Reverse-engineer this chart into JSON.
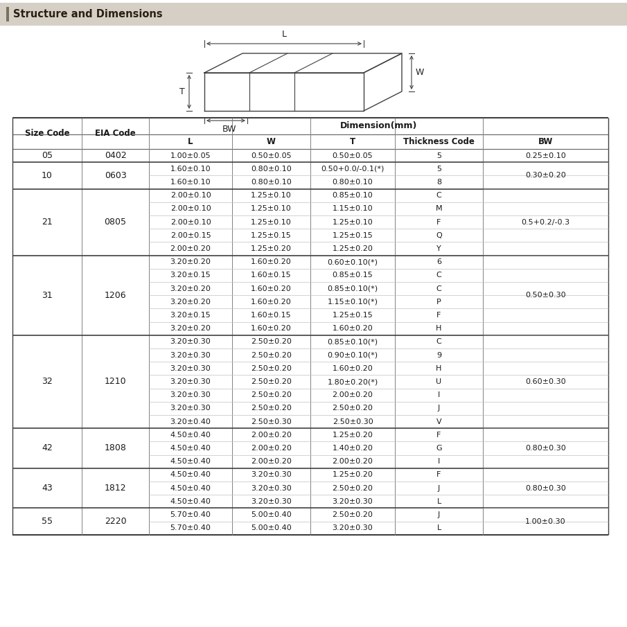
{
  "title": "Structure and Dimensions",
  "col_header": [
    "Size Code",
    "EIA Code",
    "L",
    "W",
    "T",
    "Thickness Code",
    "BW"
  ],
  "dim_header": "Dimension(mm)",
  "rows": [
    [
      "05",
      "0402",
      "1.00±0.05",
      "0.50±0.05",
      "0.50±0.05",
      "5",
      "0.25±0.10"
    ],
    [
      "10",
      "0603",
      "1.60±0.10",
      "0.80±0.10",
      "0.50+0.0/-0.1(*)",
      "5",
      "0.30±0.20"
    ],
    [
      "10",
      "0603",
      "1.60±0.10",
      "0.80±0.10",
      "0.80±0.10",
      "8",
      "0.30±0.20"
    ],
    [
      "21",
      "0805",
      "2.00±0.10",
      "1.25±0.10",
      "0.85±0.10",
      "C",
      "0.5+0.2/-0.3"
    ],
    [
      "21",
      "0805",
      "2.00±0.10",
      "1.25±0.10",
      "1.15±0.10",
      "M",
      "0.5+0.2/-0.3"
    ],
    [
      "21",
      "0805",
      "2.00±0.10",
      "1.25±0.10",
      "1.25±0.10",
      "F",
      "0.5+0.2/-0.3"
    ],
    [
      "21",
      "0805",
      "2.00±0.15",
      "1.25±0.15",
      "1.25±0.15",
      "Q",
      "0.5+0.2/-0.3"
    ],
    [
      "21",
      "0805",
      "2.00±0.20",
      "1.25±0.20",
      "1.25±0.20",
      "Y",
      "0.5+0.2/-0.3"
    ],
    [
      "31",
      "1206",
      "3.20±0.20",
      "1.60±0.20",
      "0.60±0.10(*)",
      "6",
      "0.50±0.30"
    ],
    [
      "31",
      "1206",
      "3.20±0.15",
      "1.60±0.15",
      "0.85±0.15",
      "C",
      "0.50±0.30"
    ],
    [
      "31",
      "1206",
      "3.20±0.20",
      "1.60±0.20",
      "0.85±0.10(*)",
      "C",
      "0.50±0.30"
    ],
    [
      "31",
      "1206",
      "3.20±0.20",
      "1.60±0.20",
      "1.15±0.10(*)",
      "P",
      "0.50±0.30"
    ],
    [
      "31",
      "1206",
      "3.20±0.15",
      "1.60±0.15",
      "1.25±0.15",
      "F",
      "0.50±0.30"
    ],
    [
      "31",
      "1206",
      "3.20±0.20",
      "1.60±0.20",
      "1.60±0.20",
      "H",
      "0.50±0.30"
    ],
    [
      "32",
      "1210",
      "3.20±0.30",
      "2.50±0.20",
      "0.85±0.10(*)",
      "C",
      "0.60±0.30"
    ],
    [
      "32",
      "1210",
      "3.20±0.30",
      "2.50±0.20",
      "0.90±0.10(*)",
      "9",
      "0.60±0.30"
    ],
    [
      "32",
      "1210",
      "3.20±0.30",
      "2.50±0.20",
      "1.60±0.20",
      "H",
      "0.60±0.30"
    ],
    [
      "32",
      "1210",
      "3.20±0.30",
      "2.50±0.20",
      "1.80±0.20(*)",
      "U",
      "0.60±0.30"
    ],
    [
      "32",
      "1210",
      "3.20±0.30",
      "2.50±0.20",
      "2.00±0.20",
      "I",
      "0.60±0.30"
    ],
    [
      "32",
      "1210",
      "3.20±0.30",
      "2.50±0.20",
      "2.50±0.20",
      "J",
      "0.60±0.30"
    ],
    [
      "32",
      "1210",
      "3.20±0.40",
      "2.50±0.30",
      "2.50±0.30",
      "V",
      "0.60±0.30"
    ],
    [
      "42",
      "1808",
      "4.50±0.40",
      "2.00±0.20",
      "1.25±0.20",
      "F",
      "0.80±0.30"
    ],
    [
      "42",
      "1808",
      "4.50±0.40",
      "2.00±0.20",
      "1.40±0.20",
      "G",
      "0.80±0.30"
    ],
    [
      "42",
      "1808",
      "4.50±0.40",
      "2.00±0.20",
      "2.00±0.20",
      "I",
      "0.80±0.30"
    ],
    [
      "43",
      "1812",
      "4.50±0.40",
      "3.20±0.30",
      "1.25±0.20",
      "F",
      "0.80±0.30"
    ],
    [
      "43",
      "1812",
      "4.50±0.40",
      "3.20±0.30",
      "2.50±0.20",
      "J",
      "0.80±0.30"
    ],
    [
      "43",
      "1812",
      "4.50±0.40",
      "3.20±0.30",
      "3.20±0.30",
      "L",
      "0.80±0.30"
    ],
    [
      "55",
      "2220",
      "5.70±0.40",
      "5.00±0.40",
      "2.50±0.20",
      "J",
      "1.00±0.30"
    ],
    [
      "55",
      "2220",
      "5.70±0.40",
      "5.00±0.40",
      "3.20±0.30",
      "L",
      "1.00±0.30"
    ]
  ],
  "group_spans": [
    [
      "05",
      0,
      0
    ],
    [
      "10",
      1,
      2
    ],
    [
      "21",
      3,
      7
    ],
    [
      "31",
      8,
      13
    ],
    [
      "32",
      14,
      20
    ],
    [
      "42",
      21,
      23
    ],
    [
      "43",
      24,
      26
    ],
    [
      "55",
      27,
      28
    ]
  ],
  "eia_codes": {
    "05": "0402",
    "10": "0603",
    "21": "0805",
    "31": "1206",
    "32": "1210",
    "42": "1808",
    "43": "1812",
    "55": "2220"
  },
  "bw_groups": [
    [
      0,
      0,
      "0.25±0.10"
    ],
    [
      1,
      2,
      "0.30±0.20"
    ],
    [
      3,
      7,
      "0.5+0.2/-0.3"
    ],
    [
      8,
      13,
      "0.50±0.30"
    ],
    [
      14,
      20,
      "0.60±0.30"
    ],
    [
      21,
      23,
      "0.80±0.30"
    ],
    [
      24,
      26,
      "0.80±0.30"
    ],
    [
      27,
      28,
      "1.00±0.30"
    ]
  ]
}
